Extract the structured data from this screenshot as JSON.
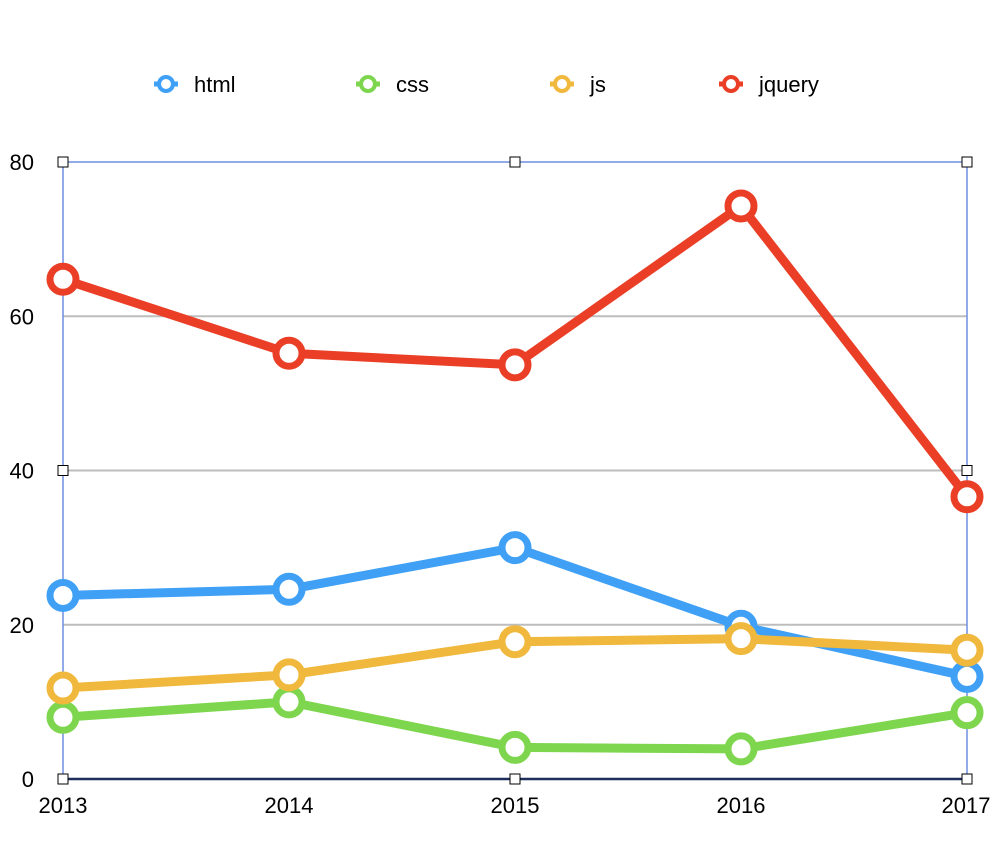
{
  "chart_data": {
    "type": "line",
    "title": "",
    "xlabel": "",
    "ylabel": "",
    "x": [
      "2013",
      "2014",
      "2015",
      "2016",
      "2017"
    ],
    "ylim": [
      0,
      80
    ],
    "y_ticks": [
      "0",
      "20",
      "40",
      "60",
      "80"
    ],
    "grid": true,
    "legend_position": "top",
    "series": [
      {
        "name": "html",
        "color": "#3fa0f5",
        "values": [
          23.8,
          24.6,
          30,
          19.8,
          13.3
        ]
      },
      {
        "name": "css",
        "color": "#7ed64e",
        "values": [
          8,
          10,
          4.1,
          3.9,
          8.6
        ]
      },
      {
        "name": "js",
        "color": "#f0b83c",
        "values": [
          11.8,
          13.5,
          17.8,
          18.2,
          16.7
        ]
      },
      {
        "name": "jquery",
        "color": "#ea3f26",
        "values": [
          64.8,
          55.2,
          53.7,
          74.3,
          36.6
        ]
      }
    ]
  },
  "colors": {
    "frame": "#6f8fe0",
    "grid": "#bdbdbd",
    "axis": "#1f2f5c"
  }
}
